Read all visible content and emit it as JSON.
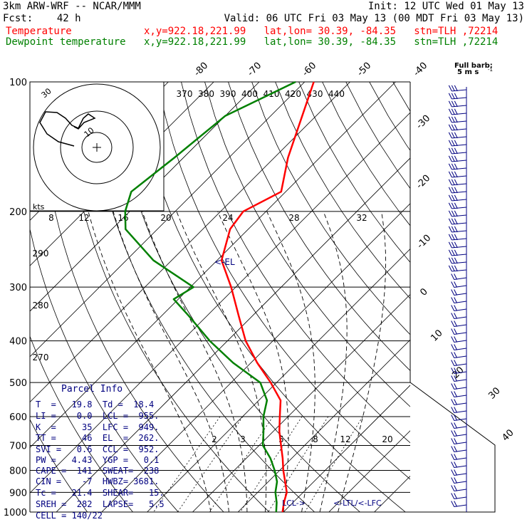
{
  "header": {
    "line1_left": "3km ARW-WRF -- NCAR/MMM",
    "line1_right": "Init: 12 UTC Wed 01 May 13",
    "line2_left": "Fcst:    42 h",
    "line2_right": "Valid: 06 UTC Fri 03 May 13 (00 MDT Fri 03 May 13)",
    "temp_label": "Temperature",
    "dew_label": "Dewpoint temperature",
    "temp_info": "x,y=922.18,221.99   lat,lon= 30.39, -84.35   stn=TLH ,72214",
    "dew_info": "x,y=922.18,221.99   lat,lon= 30.39, -84.35   stn=TLH ,72214"
  },
  "colors": {
    "temperature": "#ff0000",
    "dewpoint": "#008000",
    "parcel_text": "#000080",
    "barbs": "#000080"
  },
  "wind_legend": {
    "title": "Full barb:",
    "value": "5 m s",
    "exp": "-1"
  },
  "parcel": {
    "title": "Parcel Info",
    "rows": [
      "T  =   19.8  Td =  18.4",
      "LI =    0.0  LCL =  955.",
      "K  =     35  LFC =  949.",
      "TT =     46  EL  =  262.",
      "SVI =   0.6  CCL =  952.",
      "PW =   4.43  YGP =   0.1",
      "CAPE =  141  SWEAT=  238",
      "CIN =    -7  HWBZ= 3681.",
      "Tc =   21.4  SHEAR=   15.",
      "SREH =  282  LAPSE=   5.5",
      "CELL = 140/22"
    ]
  },
  "annotations": {
    "el": "<-EL",
    "lcl": "LCL->",
    "ltl_lfc": "<-LTL/<-LFC"
  },
  "hodograph": {
    "units": "kts",
    "ring_labels": [
      "30",
      "10"
    ],
    "x_ticks": [
      "8",
      "12",
      "16",
      "20",
      "24",
      "28",
      "32"
    ]
  },
  "chart_data": {
    "type": "skew-t",
    "pressure_levels": [
      100,
      200,
      300,
      400,
      500,
      600,
      700,
      800,
      900,
      1000
    ],
    "pressure_labels": [
      "100",
      "200",
      "300",
      "400",
      "500",
      "600",
      "700",
      "800",
      "900",
      "1000"
    ],
    "isotherm_labels": [
      "-80",
      "-70",
      "-60",
      "-50",
      "-40",
      "-30",
      "-20",
      "-10",
      "0",
      "10",
      "20",
      "30",
      "40"
    ],
    "theta_labels_top": [
      "370",
      "380",
      "390",
      "400",
      "410",
      "420",
      "430",
      "440"
    ],
    "theta_labels_left": [
      "290",
      "280",
      "270"
    ],
    "mixing_ratio_labels": [
      "2",
      "3",
      "5",
      "8",
      "12",
      "20"
    ],
    "series": [
      {
        "name": "Temperature",
        "p": [
          100,
          150,
          180,
          200,
          220,
          260,
          300,
          350,
          400,
          450,
          500,
          550,
          600,
          650,
          700,
          750,
          800,
          850,
          900,
          950,
          1000
        ],
        "t": [
          -68,
          -57,
          -51,
          -55,
          -54,
          -49,
          -41,
          -33,
          -26,
          -18.6,
          -11.3,
          -5.2,
          -1.8,
          1.4,
          4.8,
          8.0,
          10.8,
          13.7,
          16.4,
          18.0,
          19.8
        ]
      },
      {
        "name": "Dewpoint temperature",
        "p": [
          100,
          120,
          150,
          180,
          200,
          220,
          260,
          300,
          320,
          350,
          400,
          450,
          500,
          550,
          600,
          650,
          700,
          750,
          800,
          850,
          900,
          950,
          1000
        ],
        "t": [
          -72,
          -80,
          -82,
          -84,
          -81,
          -77,
          -64,
          -49.3,
          -51,
          -44,
          -33.9,
          -23.9,
          -13.6,
          -8.2,
          -5.4,
          -2.1,
          0.8,
          5.3,
          8.9,
          11.9,
          13.9,
          16.4,
          18.4
        ]
      }
    ]
  }
}
